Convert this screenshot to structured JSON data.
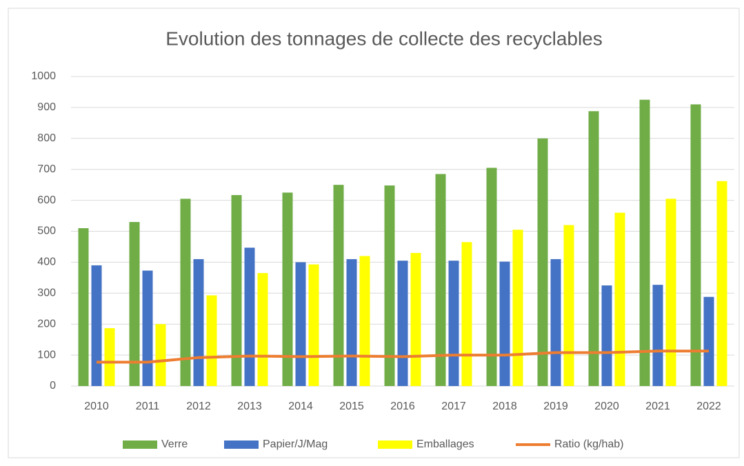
{
  "chart_data": {
    "type": "bar",
    "title": "Evolution des tonnages de collecte des recyclables",
    "categories": [
      "2010",
      "2011",
      "2012",
      "2013",
      "2014",
      "2015",
      "2016",
      "2017",
      "2018",
      "2019",
      "2020",
      "2021",
      "2022"
    ],
    "series": [
      {
        "name": "Verre",
        "color": "#70ad47",
        "values": [
          510,
          530,
          605,
          617,
          625,
          650,
          648,
          685,
          705,
          800,
          888,
          925,
          910
        ]
      },
      {
        "name": "Papier/J/Mag",
        "color": "#4472c4",
        "values": [
          390,
          373,
          410,
          447,
          400,
          410,
          405,
          405,
          402,
          410,
          325,
          327,
          288
        ]
      },
      {
        "name": "Emballages",
        "color": "#ffff00",
        "values": [
          187,
          200,
          293,
          365,
          393,
          420,
          430,
          465,
          505,
          520,
          560,
          605,
          662
        ]
      },
      {
        "name": "Ratio (kg/hab)",
        "color": "#ed7d31",
        "type": "line",
        "values": [
          77,
          77,
          92,
          97,
          95,
          97,
          95,
          100,
          100,
          108,
          108,
          113,
          113
        ]
      }
    ],
    "ylim": [
      0,
      1000
    ],
    "yticks": [
      0,
      100,
      200,
      300,
      400,
      500,
      600,
      700,
      800,
      900,
      1000
    ],
    "grid": true,
    "legend": "bottom"
  }
}
